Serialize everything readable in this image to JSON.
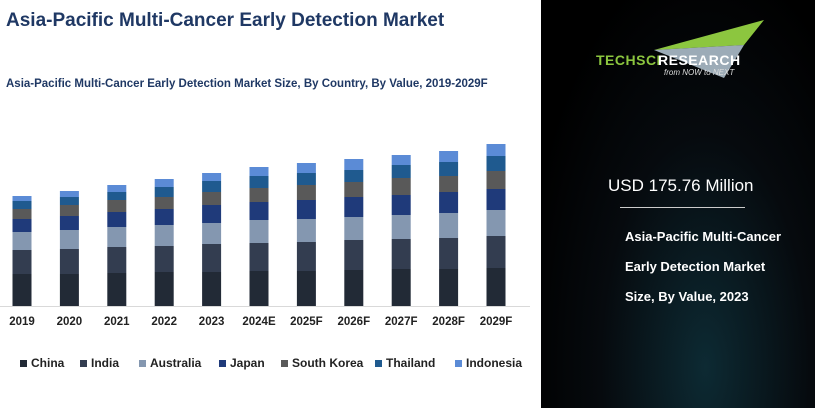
{
  "title": "Asia-Pacific Multi-Cancer Early Detection Market",
  "chart_data": {
    "type": "bar",
    "stacked": true,
    "title": "Asia-Pacific Multi-Cancer Early Detection Market Size, By Country, By Value, 2019-2029F",
    "xlabel": "",
    "ylabel": "",
    "categories": [
      "2019",
      "2020",
      "2021",
      "2022",
      "2023",
      "2024E",
      "2025F",
      "2026F",
      "2027F",
      "2028F",
      "2029F"
    ],
    "legend_position": "bottom",
    "grid": false,
    "series": [
      {
        "name": "China",
        "color": "#222a36",
        "values": [
          32,
          32,
          33,
          34,
          34,
          35,
          35,
          36,
          37,
          37,
          38
        ]
      },
      {
        "name": "India",
        "color": "#333d50",
        "values": [
          24,
          25,
          26,
          26,
          28,
          28,
          29,
          30,
          30,
          31,
          32
        ]
      },
      {
        "name": "Australia",
        "color": "#8497b0",
        "values": [
          18,
          19,
          20,
          21,
          21,
          23,
          23,
          23,
          24,
          25,
          26
        ]
      },
      {
        "name": "Japan",
        "color": "#1f3a7a",
        "values": [
          13,
          14,
          15,
          16,
          18,
          18,
          19,
          20,
          20,
          21,
          21
        ]
      },
      {
        "name": "South Korea",
        "color": "#595959",
        "values": [
          10,
          11,
          12,
          12,
          13,
          14,
          15,
          15,
          17,
          16,
          18
        ]
      },
      {
        "name": "Thailand",
        "color": "#1f5a8f",
        "values": [
          8,
          8,
          8,
          10,
          11,
          12,
          12,
          12,
          13,
          14,
          15
        ]
      },
      {
        "name": "Indonesia",
        "color": "#5b8bd6",
        "values": [
          5,
          6,
          7,
          8,
          8,
          9,
          10,
          11,
          10,
          11,
          12
        ]
      }
    ]
  },
  "panel": {
    "brand_green": "TECHSCI",
    "brand_white": "RESEARCH",
    "tagline": "from NOW to NEXT",
    "value": "USD 175.76 Million",
    "description": [
      "Asia-Pacific Multi-Cancer",
      "Early Detection Market",
      "Size, By Value, 2023"
    ]
  }
}
